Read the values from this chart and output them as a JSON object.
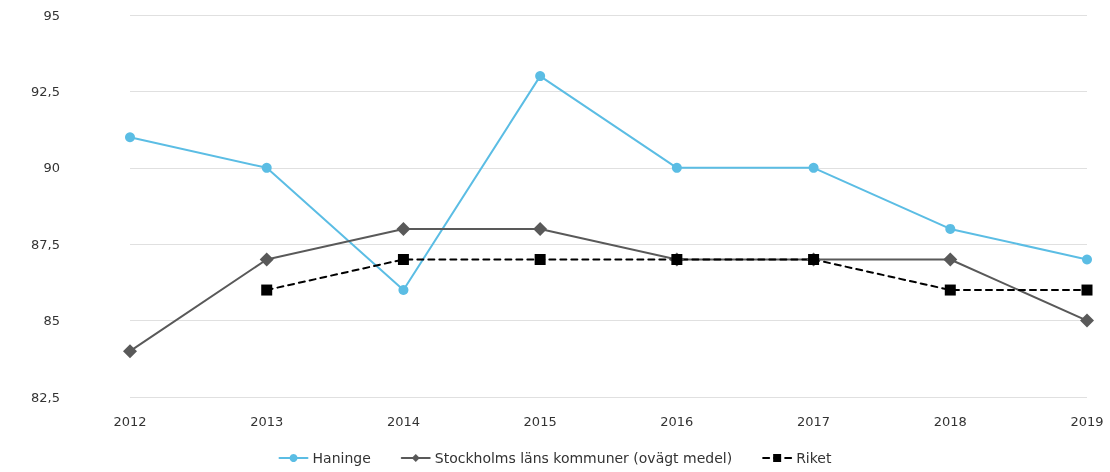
{
  "chart_data": {
    "type": "line",
    "categories": [
      "2012",
      "2013",
      "2014",
      "2015",
      "2016",
      "2017",
      "2018",
      "2019"
    ],
    "series": [
      {
        "name": "Haninge",
        "color": "#5bbde4",
        "marker": "circle",
        "line_style": "solid",
        "values": [
          91,
          90,
          86,
          93,
          90,
          90,
          88,
          87
        ]
      },
      {
        "name": "Stockholms läns kommuner (ovägt medel)",
        "color": "#595959",
        "marker": "diamond",
        "line_style": "solid",
        "values": [
          84,
          87,
          88,
          88,
          87,
          87,
          87,
          85
        ]
      },
      {
        "name": "Riket",
        "color": "#000000",
        "marker": "square",
        "line_style": "dashed",
        "values": [
          null,
          86,
          87,
          87,
          87,
          87,
          86,
          86
        ]
      }
    ],
    "ylim": [
      82.5,
      95
    ],
    "yticks": [
      {
        "value": 82.5,
        "label": "82,5"
      },
      85,
      {
        "value": 87.5,
        "label": "87,5"
      },
      90,
      {
        "value": 92.5,
        "label": "92,5"
      },
      95
    ],
    "grid": "y",
    "legend": "bottom"
  }
}
